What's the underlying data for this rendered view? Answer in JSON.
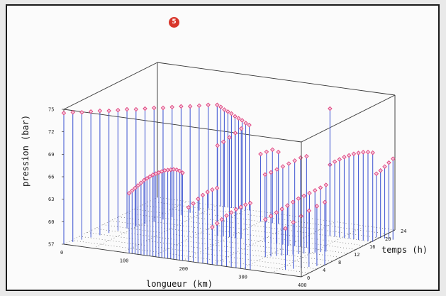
{
  "figure": {
    "badge": "5",
    "colors": {
      "stem": "#4a5fd4",
      "marker": "#e0407e",
      "frame": "#333333",
      "background": "#fbfbfb",
      "badge": "#d8362b"
    }
  },
  "chart_data": {
    "type": "3d-stem",
    "xlabel": "longueur (km)",
    "ylabel": "temps (h)",
    "zlabel": "pression (bar)",
    "xlim": [
      0,
      400
    ],
    "ylim": [
      0,
      24
    ],
    "zlim": [
      57,
      75
    ],
    "xticks": [
      "0",
      "100",
      "200",
      "300",
      "400"
    ],
    "yticks": [
      "0",
      "4",
      "8",
      "12",
      "16",
      "20",
      "24"
    ],
    "zticks": [
      "57",
      "60",
      "63",
      "66",
      "69",
      "72",
      "75"
    ],
    "grid": "dotted floor grid",
    "series": [
      {
        "x": [
          0,
          6,
          12,
          18,
          24,
          30,
          36,
          42,
          48,
          54,
          60,
          66,
          72,
          78,
          84,
          90,
          96,
          102,
          108,
          114,
          120,
          126,
          132,
          138,
          144,
          150,
          156
        ],
        "y": [
          0,
          1.4,
          2.8,
          4.2,
          5.6,
          7.0,
          8.4,
          9.8,
          11.2,
          12.6,
          14.0,
          15.4,
          16.8,
          18.2,
          19.6,
          21.0,
          22.4,
          23.8,
          23.8,
          23.8,
          23.8,
          23.8,
          23.8,
          23.8,
          23.8,
          23.8,
          23.8
        ],
        "z": [
          74.5,
          74.3,
          74.0,
          73.8,
          73.6,
          73.3,
          73.1,
          72.9,
          72.6,
          72.4,
          72.2,
          71.9,
          71.7,
          71.5,
          71.2,
          71.0,
          70.8,
          70.5,
          70.3,
          70.0,
          69.8,
          69.6,
          69.3,
          69.1,
          68.9,
          68.6,
          68.4
        ]
      },
      {
        "x": [
          110,
          115,
          120,
          125,
          130,
          135,
          140,
          145,
          150,
          155,
          160,
          165,
          170,
          175,
          180,
          185,
          190,
          195,
          200
        ],
        "y": [
          0,
          0,
          0,
          0,
          0,
          0,
          0,
          0,
          0,
          0,
          0,
          0,
          0,
          0,
          0,
          0,
          0,
          0,
          0
        ],
        "z": [
          65.0,
          65.4,
          65.8,
          66.2,
          66.6,
          67.0,
          67.3,
          67.6,
          67.9,
          68.1,
          68.3,
          68.5,
          68.7,
          68.8,
          68.9,
          69.0,
          69.0,
          68.9,
          68.7
        ]
      },
      {
        "x": [
          210,
          218,
          226,
          234,
          242,
          250,
          258
        ],
        "y": [
          0,
          0,
          0,
          0,
          0,
          0,
          0
        ],
        "z": [
          64.2,
          64.8,
          65.5,
          66.1,
          66.6,
          67.0,
          67.3
        ]
      },
      {
        "x": [
          180,
          190,
          200,
          210,
          220
        ],
        "y": [
          12,
          12,
          12,
          12,
          12
        ],
        "z": [
          69.0,
          69.6,
          70.3,
          71.0,
          71.7
        ]
      },
      {
        "x": [
          200,
          210,
          220,
          230
        ],
        "y": [
          20,
          20,
          20,
          20
        ],
        "z": [
          66.0,
          66.4,
          66.8,
          66.6
        ]
      },
      {
        "x": [
          250,
          258,
          266,
          274,
          282,
          290,
          298,
          306,
          314
        ],
        "y": [
          0,
          0,
          0,
          0,
          0,
          0,
          0,
          0,
          0
        ],
        "z": [
          62.0,
          62.6,
          63.2,
          63.8,
          64.3,
          64.8,
          65.2,
          65.6,
          65.9
        ]
      },
      {
        "x": [
          260,
          270,
          280,
          290,
          300,
          310,
          320,
          330
        ],
        "y": [
          12,
          12,
          12,
          12,
          12,
          12,
          12,
          12
        ],
        "z": [
          66.0,
          66.4,
          66.9,
          67.4,
          67.9,
          68.4,
          68.9,
          69.2
        ]
      },
      {
        "x": [
          300,
          306,
          312,
          318,
          324,
          330,
          336,
          342,
          348,
          354,
          360,
          366
        ],
        "y": [
          6,
          6.5,
          7,
          7.5,
          8,
          8.5,
          9,
          9.5,
          10,
          10.5,
          11,
          11.5
        ],
        "z": [
          62.0,
          62.4,
          62.8,
          63.2,
          63.6,
          64.0,
          64.4,
          64.7,
          65.0,
          65.3,
          65.6,
          65.9
        ]
      },
      {
        "x": [
          330,
          338,
          346,
          354,
          362,
          370,
          378,
          386,
          394,
          402
        ],
        "y": [
          18,
          18,
          18,
          18,
          18,
          18,
          18,
          18,
          18,
          18
        ],
        "z": [
          66.5,
          67.0,
          67.4,
          67.8,
          68.1,
          68.4,
          68.6,
          68.8,
          68.9,
          68.9
        ]
      },
      {
        "x": [
          360,
          368,
          376,
          384,
          392,
          400
        ],
        "y": [
          2,
          2.8,
          3.6,
          4.4,
          5.2,
          6
        ],
        "z": [
          62.5,
          63.2,
          63.9,
          64.5,
          65.0,
          65.4
        ]
      },
      {
        "x": [
          395,
          402,
          409,
          416,
          423
        ],
        "y": [
          20,
          20,
          20,
          20,
          20
        ],
        "z": [
          65.5,
          66.0,
          66.6,
          67.2,
          67.8
        ]
      },
      {
        "x": [
          330
        ],
        "y": [
          18
        ],
        "z": [
          74.0
        ]
      }
    ]
  }
}
